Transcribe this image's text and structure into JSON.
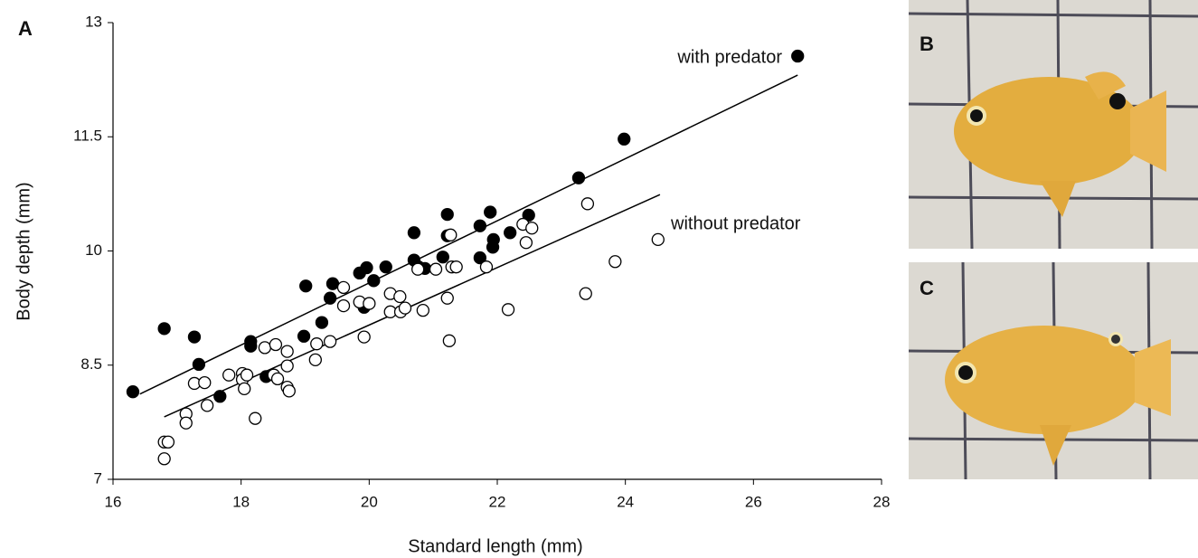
{
  "chart_data": {
    "type": "scatter",
    "panel_labels": [
      "A",
      "B",
      "C"
    ],
    "xlabel": "Standard length (mm)",
    "ylabel": "Body depth (mm)",
    "xlim": [
      16,
      28
    ],
    "xticks": [
      16,
      18,
      20,
      22,
      24,
      26,
      28
    ],
    "ylim": [
      7,
      13
    ],
    "yticks": [
      7,
      8.5,
      10,
      11.5,
      13
    ],
    "series": [
      {
        "name": "with predator",
        "color": "#000000",
        "marker": "filled",
        "x": [
          16.31,
          16.8,
          17.27,
          17.34,
          17.67,
          18.15,
          18.15,
          18.39,
          18.98,
          19.01,
          19.26,
          19.39,
          19.43,
          19.85,
          19.92,
          19.96,
          20.07,
          20.26,
          20.7,
          20.7,
          20.77,
          20.87,
          21.15,
          21.22,
          21.22,
          21.73,
          21.73,
          21.89,
          21.93,
          21.94,
          22.2,
          22.49,
          23.27,
          23.98,
          26.69
        ],
        "values": [
          8.15,
          8.98,
          8.87,
          8.51,
          8.09,
          8.81,
          8.75,
          8.35,
          8.88,
          9.54,
          9.06,
          9.38,
          9.57,
          9.71,
          9.26,
          9.78,
          9.61,
          9.79,
          9.88,
          10.24,
          9.79,
          9.77,
          9.92,
          10.48,
          10.2,
          9.91,
          10.33,
          10.51,
          10.05,
          10.15,
          10.24,
          10.47,
          10.96,
          11.47,
          12.56
        ],
        "fit": {
          "x": [
            16.42,
            26.69
          ],
          "values": [
            8.12,
            12.31
          ]
        }
      },
      {
        "name": "without predator",
        "color": "#000000",
        "marker": "open",
        "x": [
          16.8,
          16.86,
          16.8,
          17.14,
          17.14,
          17.27,
          17.43,
          17.47,
          17.81,
          18.02,
          18.02,
          18.05,
          18.09,
          18.22,
          18.37,
          18.54,
          18.51,
          18.57,
          18.72,
          18.72,
          18.72,
          18.75,
          19.16,
          19.18,
          19.39,
          19.6,
          19.6,
          19.85,
          19.92,
          20.0,
          20.33,
          20.33,
          20.48,
          20.49,
          20.56,
          20.76,
          20.84,
          21.04,
          21.22,
          21.25,
          21.27,
          21.29,
          21.36,
          21.83,
          22.17,
          22.4,
          22.45,
          22.54,
          23.41,
          23.84,
          23.38,
          24.51
        ],
        "values": [
          7.49,
          7.49,
          7.27,
          7.86,
          7.74,
          8.26,
          8.27,
          7.97,
          8.37,
          8.39,
          8.31,
          8.19,
          8.37,
          7.8,
          8.73,
          8.77,
          8.37,
          8.32,
          8.68,
          8.49,
          8.21,
          8.16,
          8.57,
          8.78,
          8.81,
          9.28,
          9.52,
          9.33,
          8.87,
          9.31,
          9.44,
          9.2,
          9.4,
          9.2,
          9.25,
          9.76,
          9.22,
          9.76,
          9.38,
          8.82,
          10.21,
          9.79,
          9.79,
          9.79,
          9.23,
          10.35,
          10.11,
          10.3,
          10.62,
          9.86,
          9.44,
          10.15
        ],
        "fit": {
          "x": [
            16.8,
            24.54
          ],
          "values": [
            7.82,
            10.74
          ]
        }
      }
    ]
  }
}
